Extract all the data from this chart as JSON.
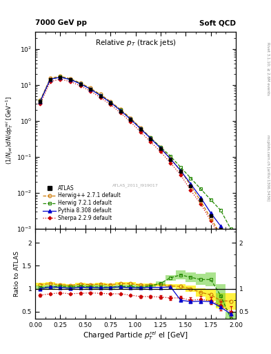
{
  "title_main": "Relative $p_T$ (track jets)",
  "top_left_label": "7000 GeV pp",
  "top_right_label": "Soft QCD",
  "ylabel_main": "(1/Njet)dN/dp$^{rel}_T$ el [GeV$^{-1}$]",
  "ylabel_ratio": "Ratio to ATLAS",
  "xlabel": "Charged Particle $p^{rel}_T$ el [GeV]",
  "watermark": "ATLAS_2011_I919017",
  "xlim": [
    0,
    2.0
  ],
  "ylim_main": [
    0.001,
    300
  ],
  "ylim_ratio": [
    0.35,
    2.3
  ],
  "x_bins": [
    0.05,
    0.15,
    0.25,
    0.35,
    0.45,
    0.55,
    0.65,
    0.75,
    0.85,
    0.95,
    1.05,
    1.15,
    1.25,
    1.35,
    1.45,
    1.55,
    1.65,
    1.75,
    1.85,
    1.95
  ],
  "y_atlas": [
    3.5,
    14.0,
    16.0,
    14.0,
    10.5,
    7.5,
    5.0,
    3.2,
    1.9,
    1.1,
    0.6,
    0.32,
    0.17,
    0.085,
    0.04,
    0.016,
    0.0065,
    0.0023,
    0.00095,
    0.0003
  ],
  "y_atlas_err": [
    0.3,
    0.5,
    0.5,
    0.4,
    0.3,
    0.25,
    0.18,
    0.12,
    0.07,
    0.045,
    0.025,
    0.014,
    0.008,
    0.004,
    0.002,
    0.001,
    0.0005,
    0.0002,
    9e-05,
    4e-05
  ],
  "y_herwig2": [
    3.8,
    15.5,
    17.5,
    15.0,
    11.5,
    8.2,
    5.5,
    3.5,
    2.1,
    1.22,
    0.65,
    0.345,
    0.185,
    0.09,
    0.042,
    0.016,
    0.006,
    0.002,
    0.0007,
    0.00022
  ],
  "herwig2_color": "#cc7700",
  "herwig2_label": "Herwig++ 2.7.1 default",
  "y_herwig7": [
    3.6,
    14.5,
    16.8,
    14.5,
    11.0,
    7.8,
    5.2,
    3.3,
    2.0,
    1.15,
    0.62,
    0.34,
    0.19,
    0.105,
    0.052,
    0.026,
    0.013,
    0.0065,
    0.0033,
    0.001
  ],
  "herwig7_color": "#228800",
  "herwig7_label": "Herwig 7.2.1 default",
  "y_pythia": [
    3.5,
    14.5,
    16.5,
    14.2,
    10.8,
    7.7,
    5.1,
    3.3,
    1.97,
    1.12,
    0.61,
    0.33,
    0.175,
    0.088,
    0.042,
    0.018,
    0.0075,
    0.0028,
    0.0012,
    0.00045
  ],
  "pythia_color": "#0000cc",
  "pythia_label": "Pythia 8.308 default",
  "y_sherpa": [
    3.0,
    12.5,
    14.5,
    12.5,
    9.5,
    6.8,
    4.5,
    2.85,
    1.7,
    0.95,
    0.5,
    0.265,
    0.14,
    0.068,
    0.032,
    0.012,
    0.005,
    0.0017,
    0.0006,
    0.00015
  ],
  "sherpa_color": "#cc0000",
  "sherpa_label": "Sherpa 2.2.9 default",
  "ratio_herwig2": [
    1.09,
    1.11,
    1.09,
    1.07,
    1.1,
    1.09,
    1.1,
    1.09,
    1.11,
    1.11,
    1.08,
    1.08,
    1.09,
    1.06,
    1.05,
    1.0,
    0.92,
    0.87,
    0.74,
    0.73
  ],
  "ratio_herwig7": [
    1.03,
    1.04,
    1.05,
    1.04,
    1.05,
    1.04,
    1.04,
    1.03,
    1.05,
    1.05,
    1.03,
    1.06,
    1.12,
    1.24,
    1.3,
    1.25,
    1.2,
    1.2,
    0.85,
    0.35
  ],
  "ratio_pythia": [
    1.0,
    1.04,
    1.03,
    1.01,
    1.03,
    1.03,
    1.02,
    1.03,
    1.04,
    1.02,
    1.02,
    1.03,
    1.03,
    1.04,
    0.75,
    0.72,
    0.73,
    0.72,
    0.6,
    0.45
  ],
  "ratio_sherpa": [
    0.86,
    0.89,
    0.91,
    0.89,
    0.9,
    0.91,
    0.9,
    0.89,
    0.89,
    0.86,
    0.83,
    0.83,
    0.82,
    0.8,
    0.8,
    0.75,
    0.77,
    0.74,
    0.63,
    0.5
  ],
  "ratio_sherpa_err": [
    0.03,
    0.02,
    0.02,
    0.02,
    0.02,
    0.02,
    0.02,
    0.02,
    0.02,
    0.02,
    0.03,
    0.03,
    0.04,
    0.05,
    0.05,
    0.06,
    0.07,
    0.08,
    0.1,
    0.12
  ],
  "band_herwig2_lo": [
    1.05,
    1.08,
    1.06,
    1.04,
    1.07,
    1.06,
    1.07,
    1.06,
    1.08,
    1.08,
    1.05,
    1.05,
    1.06,
    1.02,
    1.0,
    0.93,
    0.83,
    0.74,
    0.58,
    0.55
  ],
  "band_herwig2_hi": [
    1.13,
    1.14,
    1.12,
    1.1,
    1.13,
    1.12,
    1.13,
    1.12,
    1.14,
    1.14,
    1.11,
    1.11,
    1.12,
    1.1,
    1.1,
    1.07,
    1.01,
    1.0,
    0.9,
    0.91
  ],
  "band_herwig7_lo": [
    0.99,
    1.0,
    1.01,
    1.0,
    1.01,
    1.0,
    1.0,
    0.99,
    1.01,
    1.01,
    0.99,
    1.02,
    1.08,
    1.18,
    1.2,
    1.15,
    1.08,
    1.05,
    0.6,
    0.2
  ],
  "band_herwig7_hi": [
    1.07,
    1.08,
    1.09,
    1.08,
    1.09,
    1.08,
    1.08,
    1.07,
    1.09,
    1.09,
    1.07,
    1.1,
    1.16,
    1.3,
    1.4,
    1.35,
    1.32,
    1.35,
    1.1,
    0.5
  ]
}
